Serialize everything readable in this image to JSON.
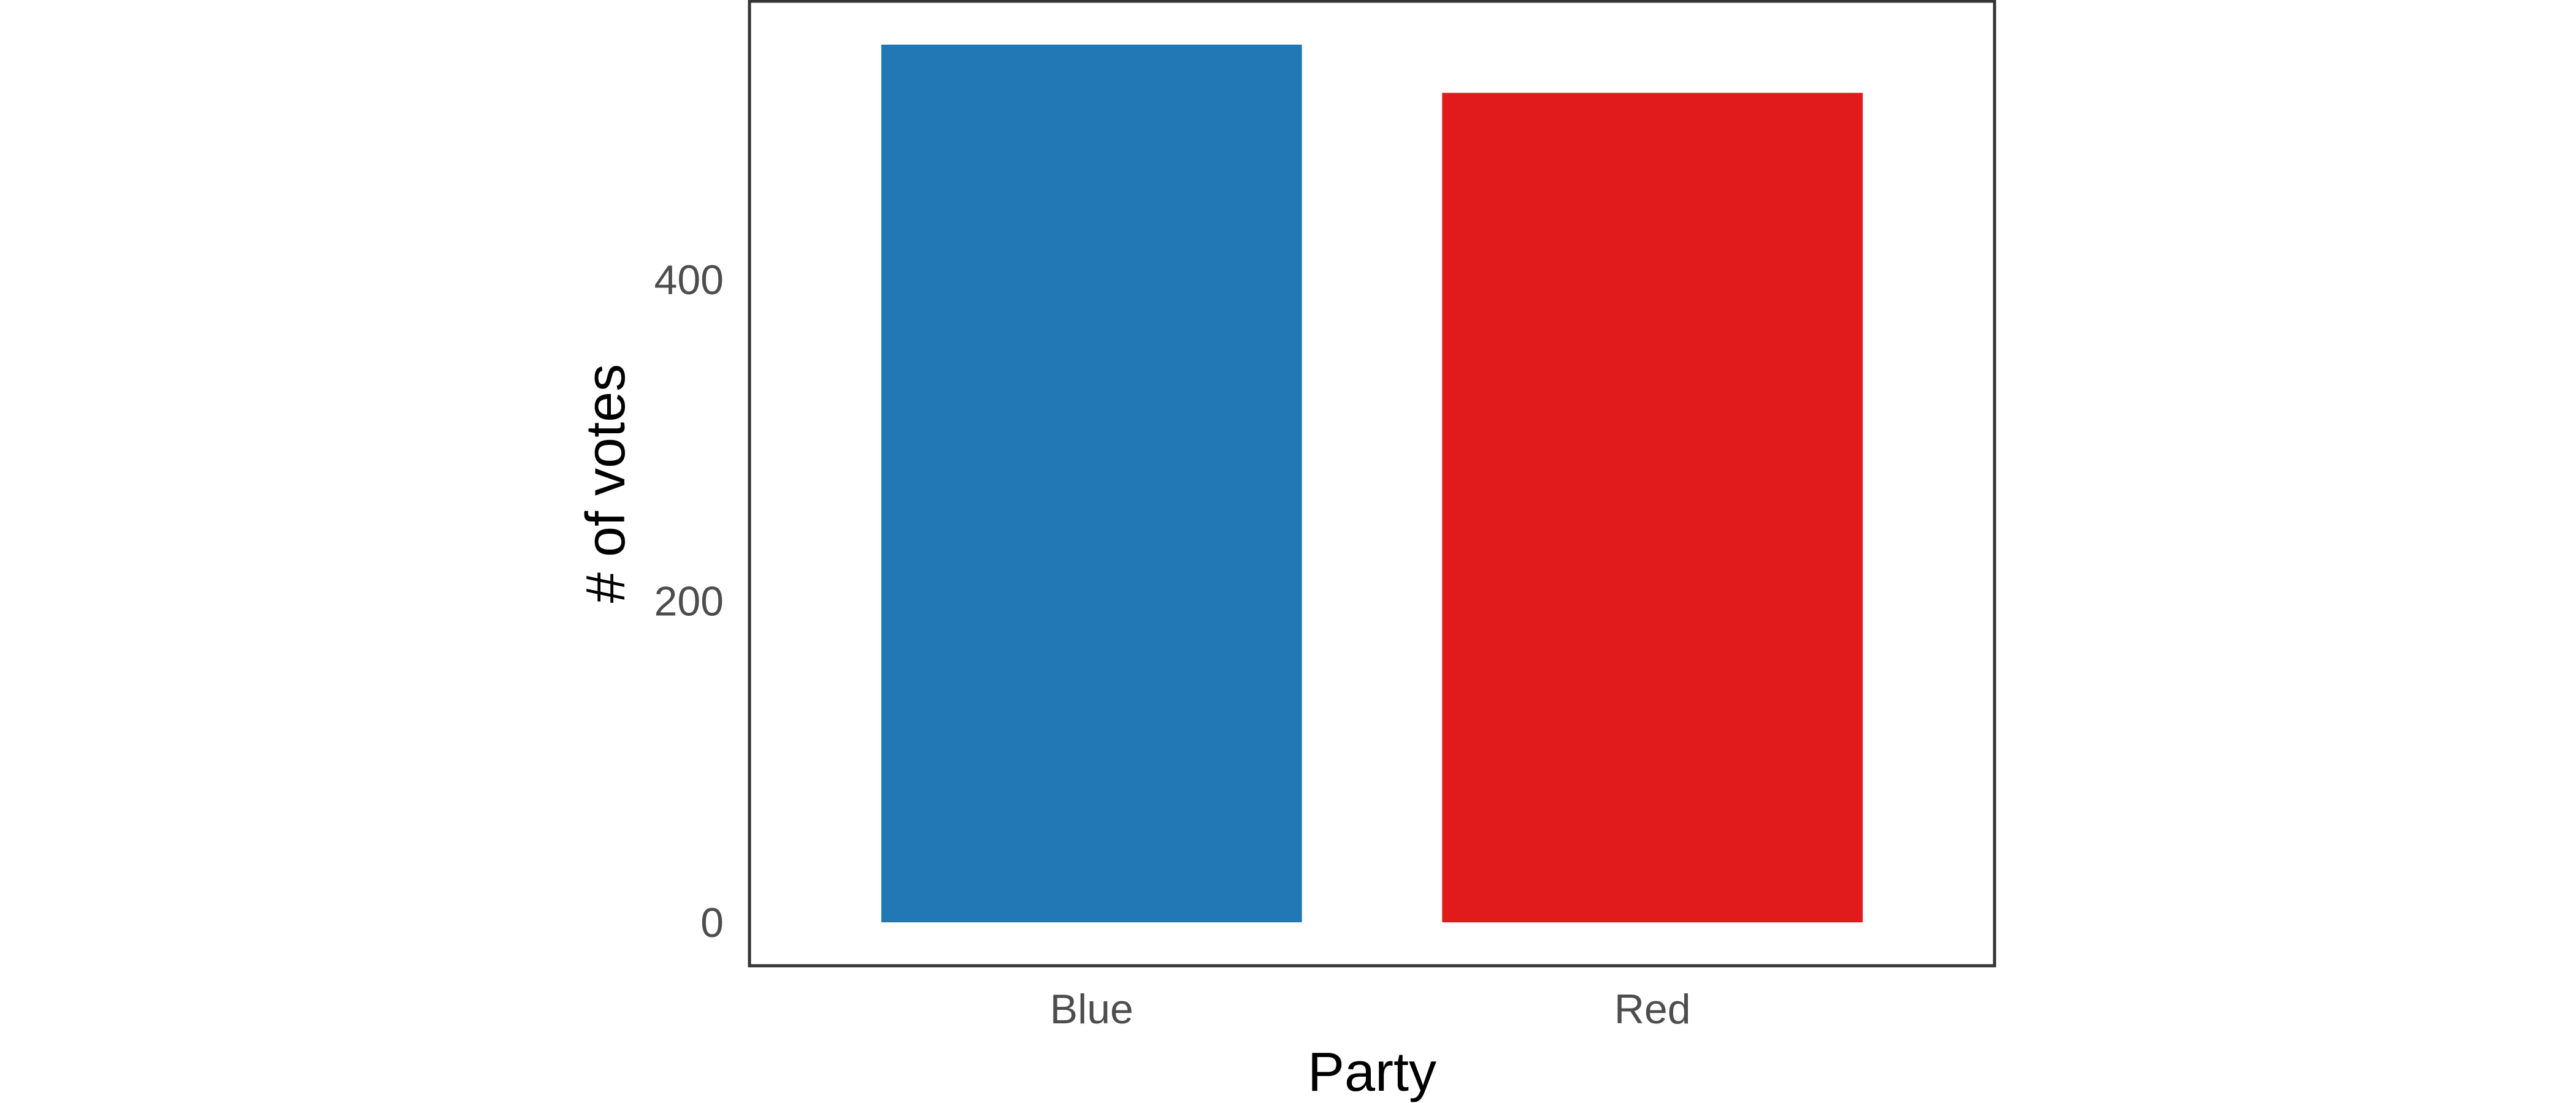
{
  "chart_data": {
    "type": "bar",
    "title": "",
    "xlabel": "Party",
    "ylabel": "# of votes",
    "categories": [
      "Blue",
      "Red"
    ],
    "values": [
      546,
      516
    ],
    "colors": [
      "#2178b4",
      "#e11a1c"
    ],
    "ylim": [
      -27,
      573
    ],
    "yticks": [
      0,
      200,
      400
    ],
    "grid": false,
    "legend": "none"
  }
}
